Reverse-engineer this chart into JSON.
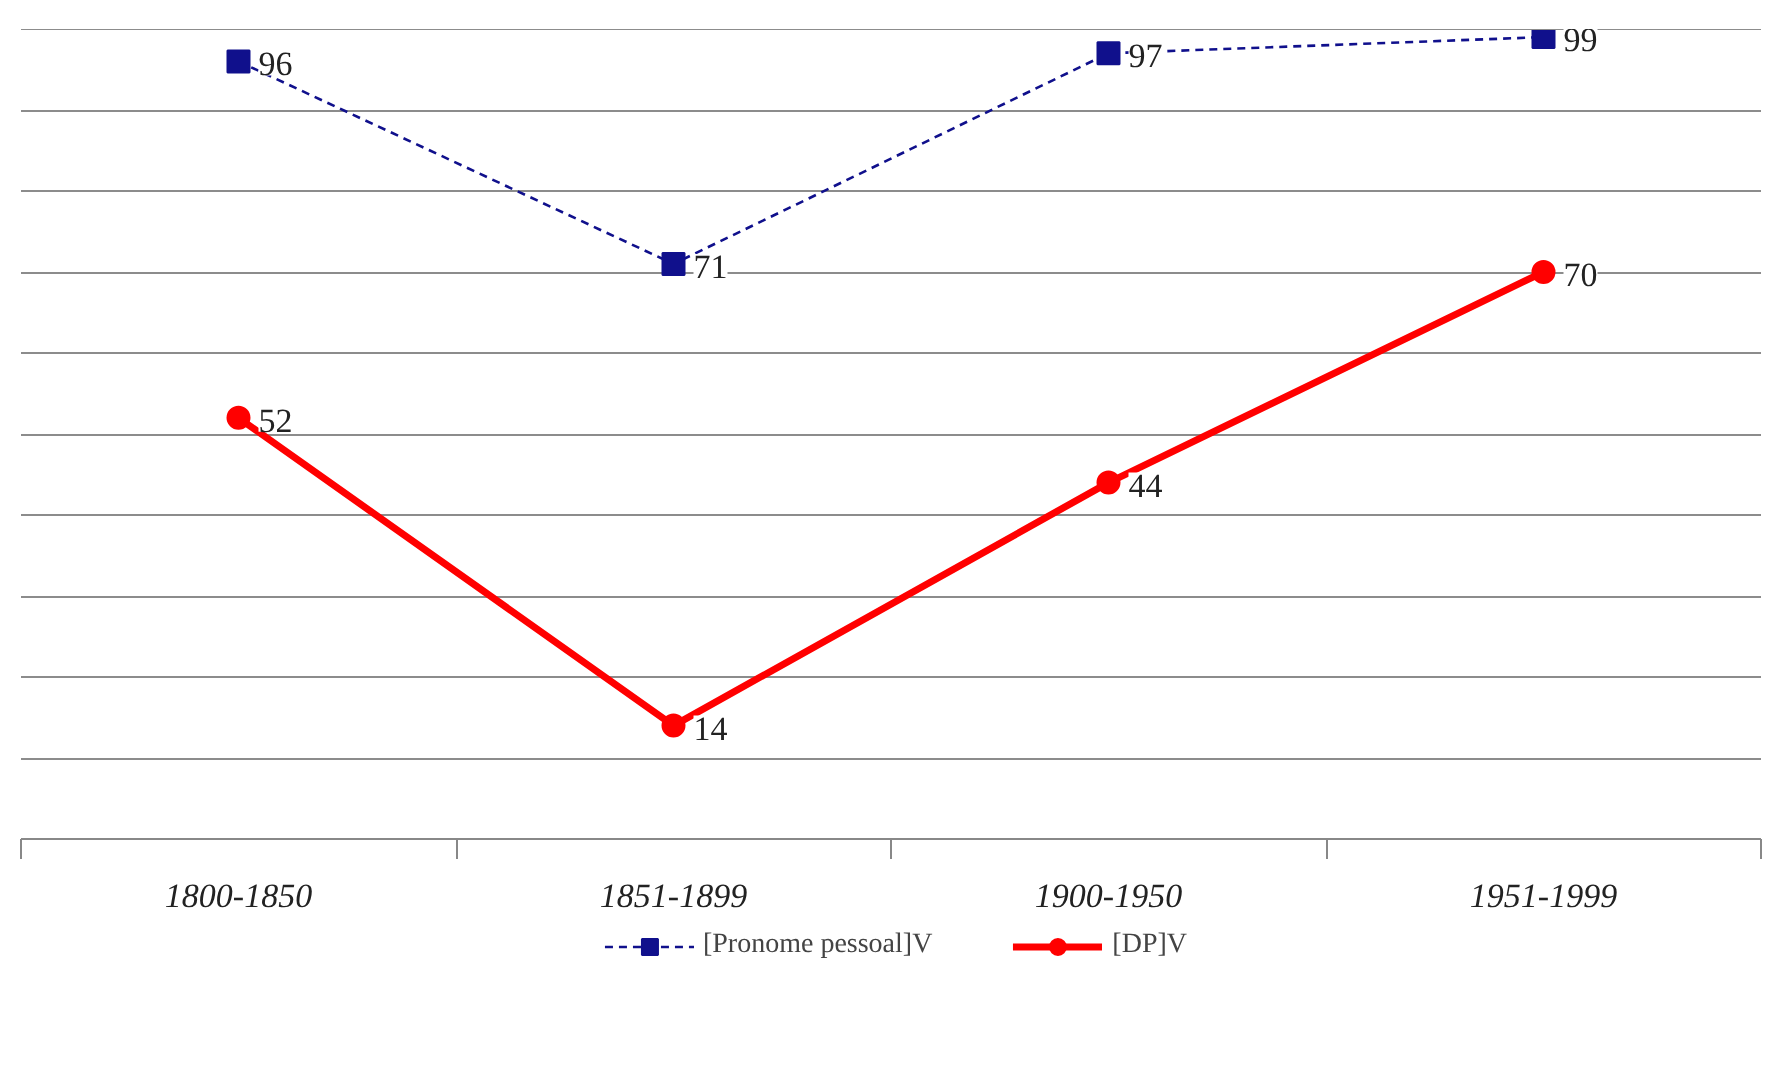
{
  "chart_data": {
    "type": "line",
    "categories": [
      "1800-1850",
      "1851-1899",
      "1900-1950",
      "1951-1999"
    ],
    "series": [
      {
        "name": "[Pronome pessoal]V",
        "color": "#10108c",
        "values": [
          96,
          71,
          97,
          99
        ],
        "marker": "square",
        "line_style": "dashed"
      },
      {
        "name": "[DP]V",
        "color": "#ff0000",
        "values": [
          52,
          14,
          44,
          70
        ],
        "marker": "circle",
        "line_style": "solid"
      }
    ],
    "ylim": [
      0,
      100
    ],
    "yticks": [
      {
        "value": 0,
        "label": null
      },
      {
        "value": 10,
        "label": null
      },
      {
        "value": 20,
        "label": null
      },
      {
        "value": 30,
        "label": null
      },
      {
        "value": 40,
        "label": null
      },
      {
        "value": 50,
        "label": null
      },
      {
        "value": 60,
        "label": null
      },
      {
        "value": 70,
        "label": null
      },
      {
        "value": 80,
        "label": null
      },
      {
        "value": 90,
        "label": null
      },
      {
        "value": 100,
        "label": null
      }
    ],
    "grid": "y",
    "legend": "bottom",
    "data_labels": true,
    "tick_labels": "x"
  }
}
